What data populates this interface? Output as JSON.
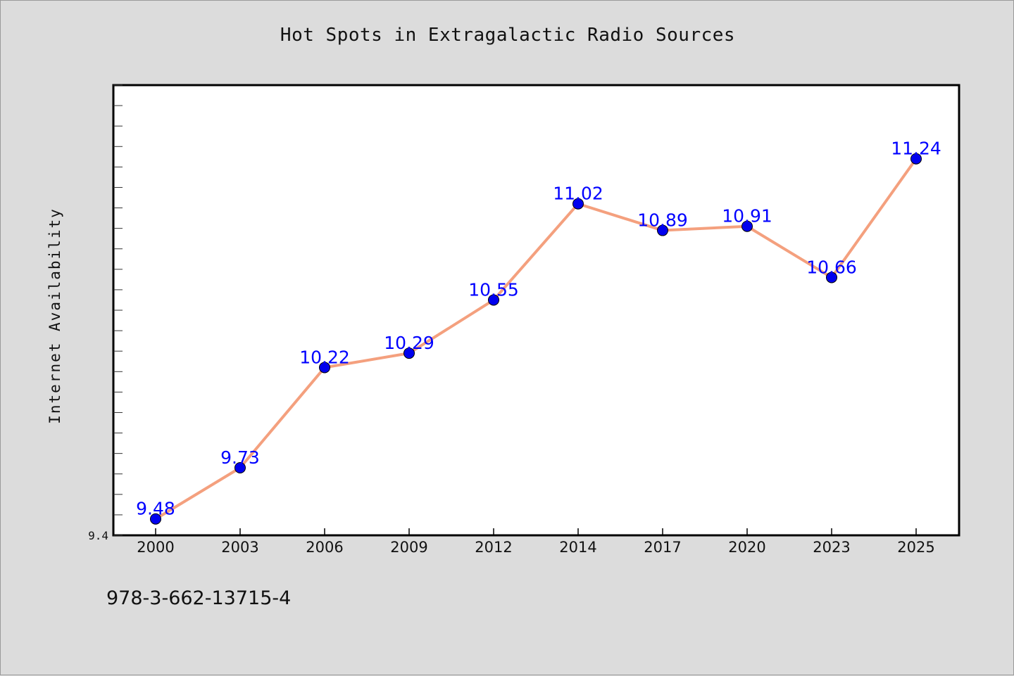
{
  "chart_data": {
    "type": "line",
    "title": "Hot Spots in Extragalactic Radio Sources",
    "xlabel": "",
    "ylabel": "Internet Availability",
    "categories": [
      "2000",
      "2003",
      "2006",
      "2009",
      "2012",
      "2014",
      "2017",
      "2020",
      "2023",
      "2025"
    ],
    "series": [
      {
        "values": [
          9.48,
          9.73,
          10.22,
          10.29,
          10.55,
          11.02,
          10.89,
          10.91,
          10.66,
          11.24
        ]
      }
    ],
    "data_labels": [
      "9.48",
      "9.73",
      "10.22",
      "10.29",
      "10.55",
      "11.02",
      "10.89",
      "10.91",
      "10.66",
      "11.24"
    ],
    "y_tick_labels": [
      "9.4"
    ],
    "ylim": [
      9.4,
      11.6
    ],
    "grid": false,
    "legend": "none",
    "colors": {
      "line": "#f4a07e",
      "marker": "#0000ee",
      "data_label": "#0000ff",
      "background": "#dcdcdc",
      "plot_background": "#ffffff"
    }
  },
  "footer": {
    "isbn": "978-3-662-13715-4"
  }
}
